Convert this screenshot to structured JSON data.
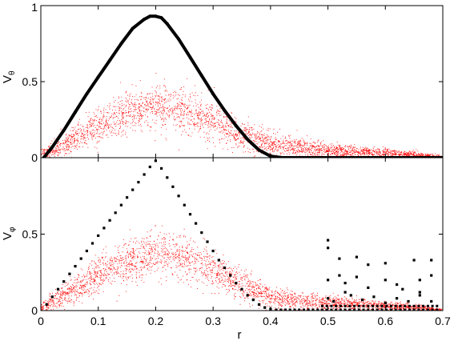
{
  "chart_data": [
    {
      "type": "scatter",
      "panel": "top",
      "title": "",
      "xlabel": "",
      "ylabel": "V",
      "ylabel_subscript": "θ",
      "xlim": [
        0,
        0.7
      ],
      "ylim": [
        0,
        1
      ],
      "y_ticks": [
        0,
        0.5,
        1
      ],
      "y_tick_labels": [
        "0",
        "0.5",
        "1"
      ],
      "x_ticks": [
        0,
        0.1,
        0.2,
        0.3,
        0.4,
        0.5,
        0.6,
        0.7
      ],
      "x_tick_labels_shown": false,
      "grid": false,
      "legend": false,
      "series": [
        {
          "color": "#000000",
          "marker": "dense points (thick curve)",
          "x": [
            0.005,
            0.02,
            0.04,
            0.06,
            0.08,
            0.1,
            0.12,
            0.14,
            0.16,
            0.18,
            0.19,
            0.2,
            0.21,
            0.22,
            0.24,
            0.26,
            0.28,
            0.3,
            0.32,
            0.34,
            0.36,
            0.38,
            0.4,
            0.42,
            0.45,
            0.5,
            0.6,
            0.7
          ],
          "y": [
            0.0,
            0.07,
            0.18,
            0.3,
            0.42,
            0.53,
            0.64,
            0.75,
            0.85,
            0.91,
            0.93,
            0.93,
            0.92,
            0.88,
            0.78,
            0.66,
            0.54,
            0.42,
            0.31,
            0.21,
            0.12,
            0.05,
            0.01,
            0.0,
            0.0,
            0.0,
            0.0,
            0.0
          ]
        },
        {
          "color": "#ff0000",
          "marker": "fine scatter cloud",
          "x": [
            0.0,
            0.05,
            0.1,
            0.15,
            0.2,
            0.25,
            0.3,
            0.35,
            0.4,
            0.45,
            0.5,
            0.55,
            0.6,
            0.65,
            0.7
          ],
          "y": [
            0.02,
            0.1,
            0.22,
            0.3,
            0.34,
            0.32,
            0.24,
            0.15,
            0.09,
            0.07,
            0.05,
            0.04,
            0.03,
            0.02,
            0.005
          ],
          "spread": [
            0.02,
            0.04,
            0.06,
            0.07,
            0.07,
            0.07,
            0.06,
            0.05,
            0.035,
            0.03,
            0.025,
            0.02,
            0.015,
            0.012,
            0.005
          ]
        }
      ]
    },
    {
      "type": "scatter",
      "panel": "bottom",
      "title": "",
      "xlabel": "r",
      "ylabel": "V",
      "ylabel_subscript": "φ",
      "xlim": [
        0,
        0.7
      ],
      "ylim": [
        0,
        1
      ],
      "y_ticks": [
        0,
        0.5
      ],
      "y_tick_labels": [
        "0",
        "0.5"
      ],
      "x_ticks": [
        0,
        0.1,
        0.2,
        0.3,
        0.4,
        0.5,
        0.6,
        0.7
      ],
      "x_tick_labels": [
        "0",
        "0.1",
        "0.2",
        "0.3",
        "0.4",
        "0.5",
        "0.6",
        "0.7"
      ],
      "grid": false,
      "legend": false,
      "series": [
        {
          "color": "#000000",
          "marker": "square points",
          "x": [
            0.01,
            0.02,
            0.03,
            0.04,
            0.05,
            0.06,
            0.07,
            0.08,
            0.09,
            0.1,
            0.11,
            0.12,
            0.13,
            0.14,
            0.15,
            0.16,
            0.17,
            0.18,
            0.19,
            0.2,
            0.21,
            0.22,
            0.23,
            0.24,
            0.25,
            0.26,
            0.27,
            0.28,
            0.29,
            0.3,
            0.31,
            0.32,
            0.33,
            0.34,
            0.35,
            0.36,
            0.37,
            0.38,
            0.39,
            0.4
          ],
          "y": [
            0.04,
            0.09,
            0.14,
            0.19,
            0.24,
            0.29,
            0.34,
            0.39,
            0.44,
            0.49,
            0.54,
            0.59,
            0.64,
            0.69,
            0.74,
            0.79,
            0.84,
            0.89,
            0.94,
            0.98,
            0.93,
            0.87,
            0.81,
            0.75,
            0.69,
            0.63,
            0.57,
            0.51,
            0.45,
            0.39,
            0.33,
            0.28,
            0.23,
            0.18,
            0.14,
            0.1,
            0.07,
            0.04,
            0.02,
            0.01
          ]
        },
        {
          "color": "#000000",
          "marker": "square points (scattered, r>0.45)",
          "x": [
            0.5,
            0.5,
            0.5,
            0.52,
            0.52,
            0.53,
            0.53,
            0.55,
            0.55,
            0.57,
            0.57,
            0.6,
            0.6,
            0.62,
            0.63,
            0.65,
            0.66,
            0.66,
            0.68,
            0.68,
            0.5,
            0.51,
            0.54,
            0.56,
            0.58,
            0.6,
            0.62,
            0.64,
            0.66,
            0.68
          ],
          "y": [
            0.46,
            0.41,
            0.2,
            0.34,
            0.23,
            0.18,
            0.12,
            0.35,
            0.22,
            0.3,
            0.15,
            0.31,
            0.2,
            0.17,
            0.14,
            0.33,
            0.2,
            0.12,
            0.33,
            0.23,
            0.08,
            0.06,
            0.1,
            0.07,
            0.09,
            0.05,
            0.08,
            0.06,
            0.1,
            0.06
          ]
        },
        {
          "color": "#ff0000",
          "marker": "fine scatter cloud",
          "x": [
            0.0,
            0.05,
            0.1,
            0.15,
            0.2,
            0.25,
            0.3,
            0.35,
            0.4,
            0.45,
            0.5,
            0.55,
            0.6,
            0.65,
            0.7
          ],
          "y": [
            0.02,
            0.12,
            0.24,
            0.32,
            0.37,
            0.36,
            0.27,
            0.17,
            0.09,
            0.06,
            0.05,
            0.04,
            0.03,
            0.02,
            0.005
          ],
          "spread": [
            0.02,
            0.04,
            0.06,
            0.07,
            0.07,
            0.07,
            0.06,
            0.05,
            0.035,
            0.03,
            0.025,
            0.02,
            0.015,
            0.012,
            0.005
          ]
        }
      ]
    }
  ]
}
